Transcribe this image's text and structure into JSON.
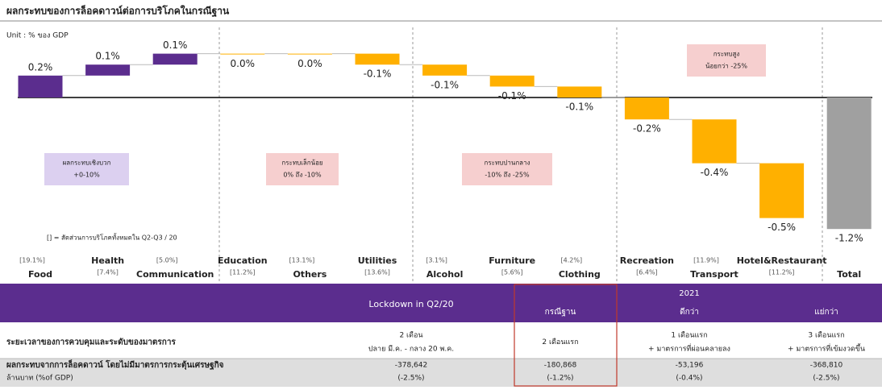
{
  "chart_data": {
    "type": "waterfall",
    "title": "ผลกระทบของการล็อคดาวน์ต่อการบริโภคในกรณีฐาน",
    "subtitle": "Unit : % ของ GDP",
    "categories": [
      "Food",
      "Health",
      "Communication",
      "Education",
      "Others",
      "Utilities",
      "Alcohol",
      "Furniture",
      "Clothing",
      "Recreation",
      "Transport",
      "Hotel&Restaurant",
      "Total"
    ],
    "shares": [
      "[19.1%]",
      "[7.4%]",
      "[5.0%]",
      "[11.2%]",
      "[13.1%]",
      "[13.6%]",
      "[3.1%]",
      "[5.6%]",
      "[4.2%]",
      "[6.4%]",
      "[11.9%]",
      "[11.2%]",
      null
    ],
    "values": [
      0.2,
      0.1,
      0.1,
      0.0,
      0.0,
      -0.1,
      -0.1,
      -0.1,
      -0.1,
      -0.2,
      -0.4,
      -0.5,
      -1.2
    ],
    "value_labels": [
      "0.2%",
      "0.1%",
      "0.1%",
      "0.0%",
      "0.0%",
      "-0.1%",
      "-0.1%",
      "-0.1%",
      "-0.1%",
      "-0.2%",
      "-0.4%",
      "-0.5%",
      "-1.2%"
    ],
    "colors": {
      "positive": "#5b2d8e",
      "negative": "#ffb000",
      "total": "#a0a0a0"
    },
    "note": "[] = สัดส่วนการบริโภคทั้งหมดใน Q2-Q3 / 20",
    "annotations": [
      {
        "lines": [
          "ผลกระทบเชิงบวก",
          "+0-10%"
        ],
        "color": "#dcd0f0"
      },
      {
        "lines": [
          "กระทบเล็กน้อย",
          "0% ถึง -10%"
        ],
        "color": "#f6cfcf"
      },
      {
        "lines": [
          "กระทบปานกลาง",
          "-10% ถึง -25%"
        ],
        "color": "#f6cfcf"
      },
      {
        "lines": [
          "กระทบสูง",
          "น้อยกว่า -25%"
        ],
        "color": "#f6cfcf"
      }
    ]
  },
  "table": {
    "header": {
      "lockdown": "Lockdown in Q2/20",
      "year": "2021",
      "scenarios": [
        "กรณีฐาน",
        "ดีกว่า",
        "แย่กว่า"
      ]
    },
    "rows": [
      [
        [
          "ระยะเวลาของการควบคุมและระดับของมาตรการ"
        ],
        [
          "2 เดือน",
          "ปลาย มี.ค. - กลาง 20 พ.ค."
        ],
        [
          "2 เดือนแรก"
        ],
        [
          "1 เดือนแรก",
          "+ มาตรการที่ผ่อนคลายลง"
        ],
        [
          "3 เดือนแรก",
          "+ มาตรการที่เข้มงวดขึ้น"
        ]
      ],
      [
        [
          "ผลกระทบจากการล็อคดาวน์ โดยไม่มีมาตรการกระตุ้นเศรษฐกิจ",
          "ล้านบาท (%of GDP)"
        ],
        [
          "-378,642",
          "(-2.5%)"
        ],
        [
          "-180,868",
          "(-1.2%)"
        ],
        [
          "-53,196",
          "(-0.4%)"
        ],
        [
          "-368,810",
          "(-2.5%)"
        ]
      ]
    ]
  }
}
